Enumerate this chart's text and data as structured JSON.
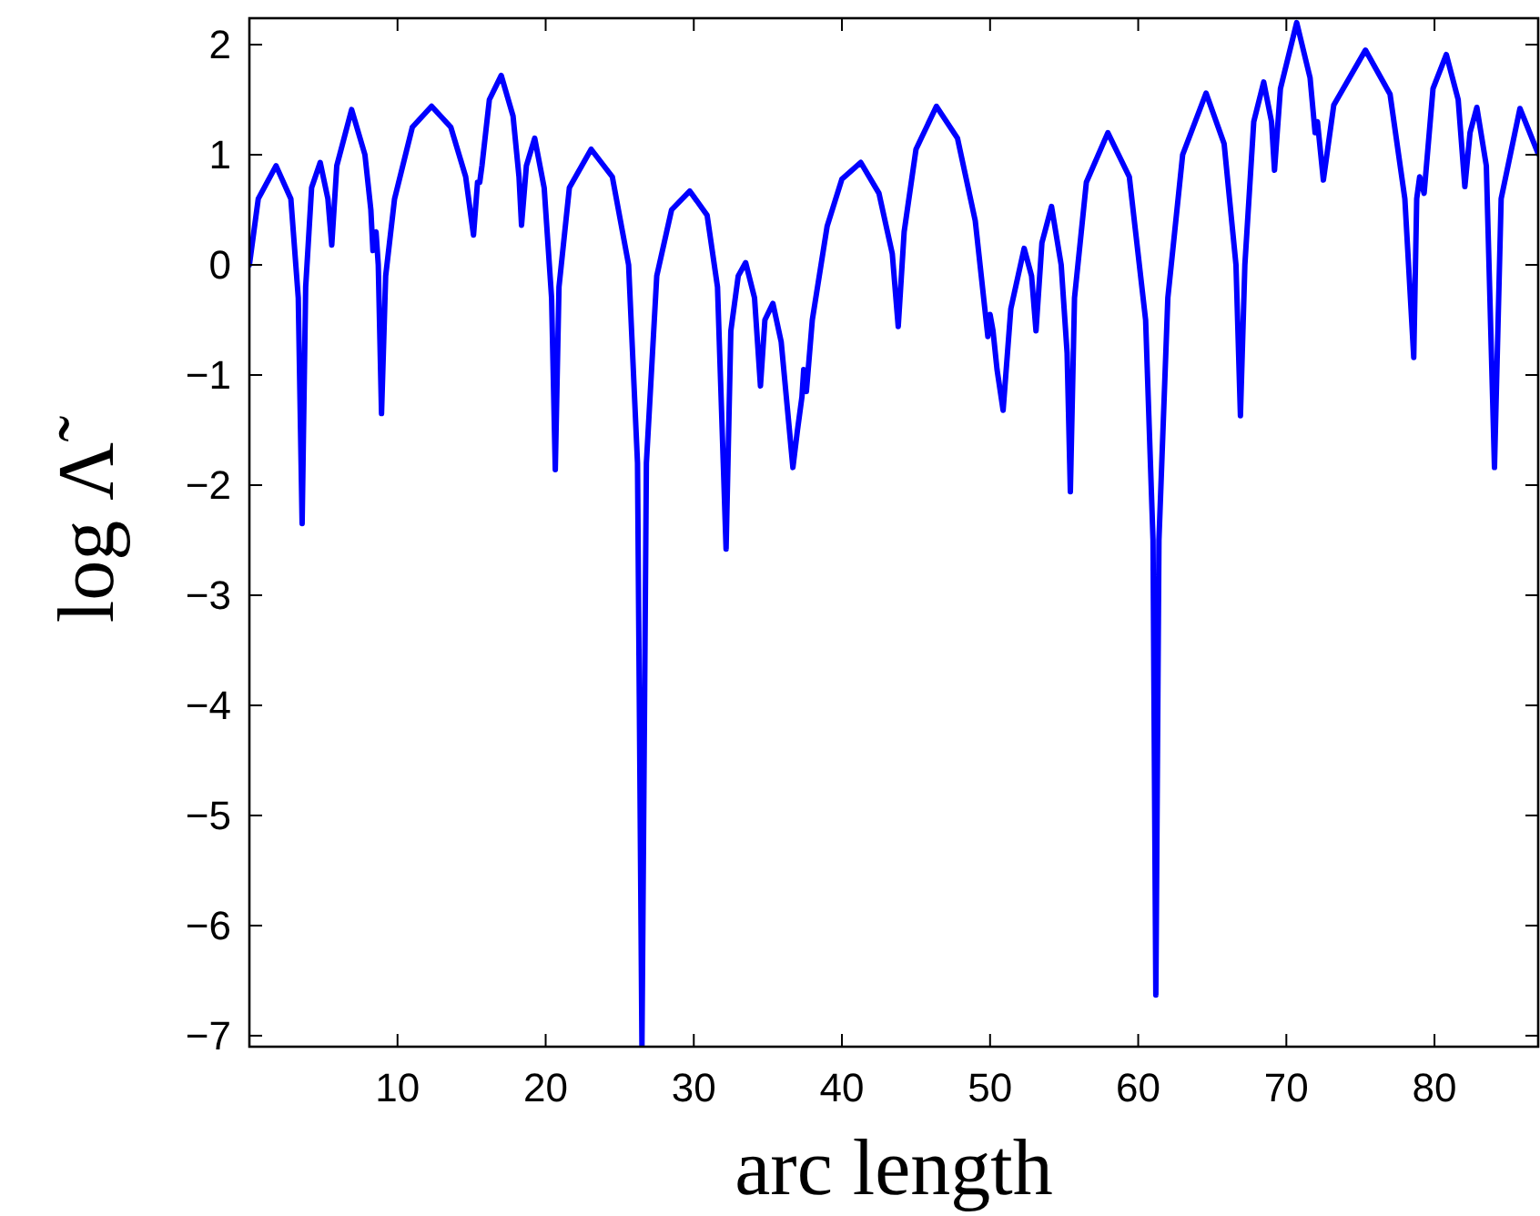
{
  "chart_data": {
    "type": "line",
    "xlabel": "arc length",
    "ylabel": "log Λ̃",
    "xlim": [
      0,
      87
    ],
    "ylim": [
      -7.1,
      2.24
    ],
    "xticks": [
      10,
      20,
      30,
      40,
      50,
      60,
      70,
      80
    ],
    "yticks": [
      {
        "value": -7,
        "label": "−7"
      },
      {
        "value": -6,
        "label": "−6"
      },
      {
        "value": -5,
        "label": "−5"
      },
      {
        "value": -4,
        "label": "−4"
      },
      {
        "value": -3,
        "label": "−3"
      },
      {
        "value": -2,
        "label": "−2"
      },
      {
        "value": -1,
        "label": "−1"
      },
      0,
      1,
      2
    ],
    "grid": false,
    "line_style": "solid",
    "marker": "none",
    "series": [
      {
        "color": "#0000ff",
        "x": [
          0,
          0.6,
          1.8,
          2.8,
          3.3,
          3.56,
          3.8,
          4.2,
          4.78,
          5.3,
          5.56,
          5.9,
          6.9,
          7.8,
          8.2,
          8.34,
          8.55,
          8.7,
          8.92,
          9.2,
          9.8,
          11.0,
          12.3,
          13.6,
          14.6,
          15.13,
          15.4,
          15.55,
          15.7,
          16.2,
          17.0,
          17.8,
          18.2,
          18.37,
          18.7,
          19.26,
          19.9,
          20.4,
          20.65,
          20.9,
          21.6,
          23.07,
          24.5,
          25.6,
          26.2,
          26.5,
          26.8,
          27.5,
          28.5,
          29.73,
          30.9,
          31.6,
          32.18,
          32.5,
          33.0,
          33.5,
          34.1,
          34.5,
          34.8,
          35.34,
          35.9,
          36.69,
          37.0,
          37.3,
          37.42,
          37.6,
          38.0,
          39.0,
          40.0,
          41.27,
          42.5,
          43.4,
          43.8,
          44.2,
          45.0,
          46.38,
          47.8,
          49.0,
          49.85,
          50.0,
          50.2,
          50.47,
          50.88,
          51.4,
          52.3,
          52.8,
          53.1,
          53.5,
          54.15,
          54.8,
          55.2,
          55.42,
          55.7,
          56.5,
          57.95,
          59.4,
          60.5,
          61.0,
          61.19,
          61.4,
          62.0,
          63.0,
          64.58,
          65.8,
          66.6,
          66.9,
          67.2,
          67.8,
          68.47,
          69.0,
          69.2,
          69.6,
          70.7,
          71.6,
          71.94,
          72.1,
          72.5,
          73.2,
          75.34,
          77.0,
          78.0,
          78.6,
          78.8,
          79.0,
          79.3,
          79.9,
          80.8,
          81.6,
          82.05,
          82.4,
          82.86,
          83.5,
          84.05,
          84.5,
          85.77,
          87.0
        ],
        "values": [
          0,
          0.6,
          0.9,
          0.6,
          -0.3,
          -2.35,
          -0.2,
          0.7,
          0.93,
          0.6,
          0.18,
          0.9,
          1.41,
          1.0,
          0.5,
          0.13,
          0.3,
          0.0,
          -1.35,
          -0.1,
          0.6,
          1.25,
          1.44,
          1.25,
          0.8,
          0.27,
          0.75,
          0.75,
          0.9,
          1.5,
          1.72,
          1.35,
          0.8,
          0.36,
          0.9,
          1.15,
          0.7,
          -0.3,
          -1.86,
          -0.2,
          0.7,
          1.05,
          0.8,
          0.0,
          -1.8,
          -7.1,
          -1.8,
          -0.1,
          0.5,
          0.67,
          0.45,
          -0.2,
          -2.58,
          -0.6,
          -0.1,
          0.02,
          -0.3,
          -1.1,
          -0.5,
          -0.35,
          -0.7,
          -1.84,
          -1.5,
          -1.2,
          -0.95,
          -1.15,
          -0.5,
          0.35,
          0.78,
          0.93,
          0.65,
          0.1,
          -0.56,
          0.3,
          1.05,
          1.44,
          1.15,
          0.4,
          -0.65,
          -0.45,
          -0.6,
          -0.95,
          -1.32,
          -0.4,
          0.15,
          -0.1,
          -0.6,
          0.2,
          0.53,
          0.0,
          -0.8,
          -2.06,
          -0.3,
          0.75,
          1.2,
          0.8,
          -0.5,
          -2.5,
          -6.63,
          -2.5,
          -0.3,
          1.0,
          1.56,
          1.1,
          0.0,
          -1.37,
          0.0,
          1.3,
          1.66,
          1.3,
          0.86,
          1.6,
          2.2,
          1.7,
          1.2,
          1.3,
          0.77,
          1.45,
          1.95,
          1.55,
          0.6,
          -0.84,
          0.6,
          0.8,
          0.65,
          1.6,
          1.91,
          1.5,
          0.71,
          1.2,
          1.43,
          0.9,
          -1.84,
          0.6,
          1.42,
          1.01
        ]
      }
    ]
  }
}
